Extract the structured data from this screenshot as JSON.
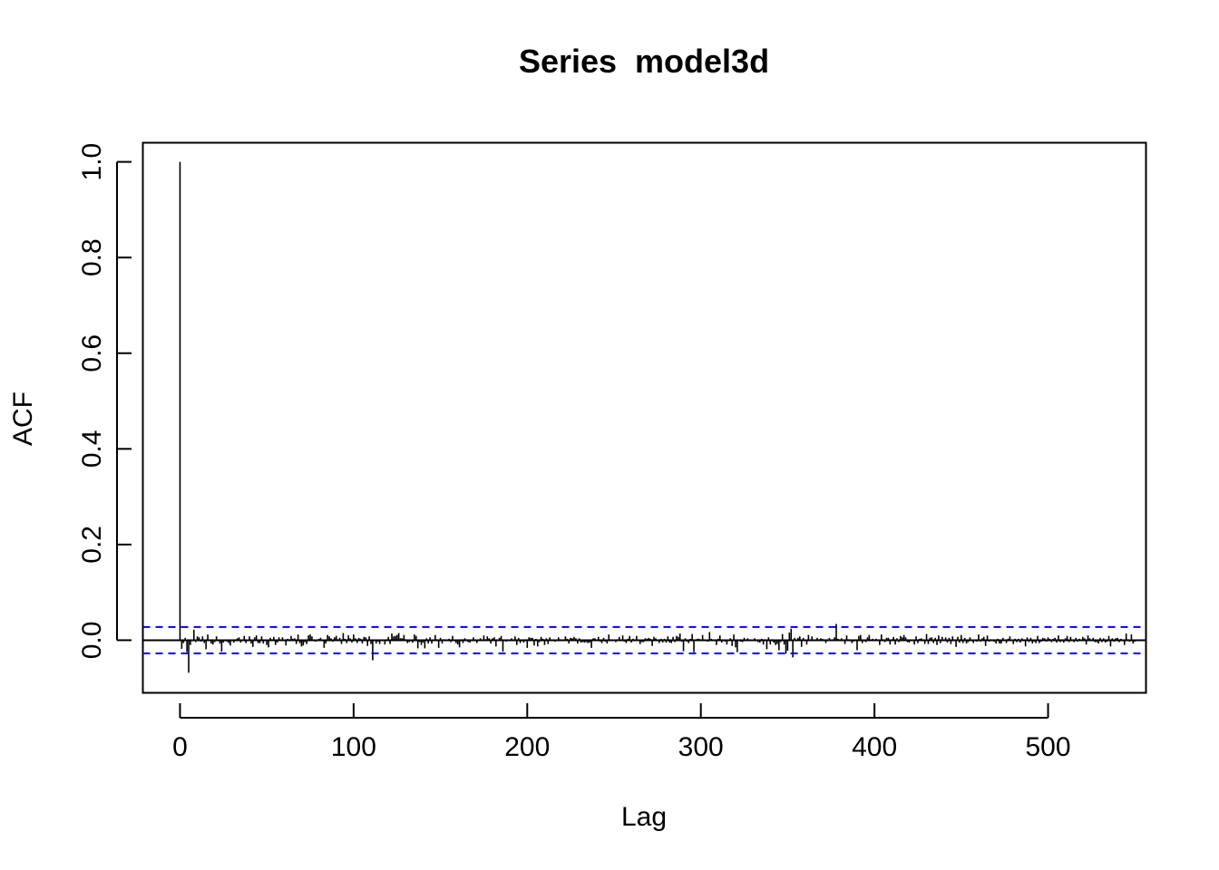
{
  "chart_data": {
    "type": "bar",
    "title": "Series  model3d",
    "xlabel": "Lag",
    "ylabel": "ACF",
    "xlim": [
      -21.4,
      556.4
    ],
    "ylim": [
      -0.11,
      1.04
    ],
    "x_ticks": [
      0,
      100,
      200,
      300,
      400,
      500
    ],
    "x_tick_labels": [
      "0",
      "100",
      "200",
      "300",
      "400",
      "500"
    ],
    "y_ticks": [
      0.0,
      0.2,
      0.4,
      0.6,
      0.8,
      1.0
    ],
    "y_tick_labels": [
      "0.0",
      "0.2",
      "0.4",
      "0.6",
      "0.8",
      "1.0"
    ],
    "confidence_band": 0.0275,
    "band_color": "#0000ff",
    "bar_color": "#000000",
    "max_lag": 535,
    "series": [
      {
        "x_start": 0,
        "x_step": 1,
        "values": [
          1.0,
          -0.018,
          -0.006,
          0.005,
          -0.025,
          -0.068,
          -0.01,
          -0.002,
          0.022,
          -0.004,
          0.008,
          0.006,
          -0.003,
          0.008,
          -0.006,
          -0.019,
          0.012,
          -0.001,
          -0.007,
          -0.009,
          -0.004,
          0.008,
          -0.002,
          -0.007,
          -0.024,
          -0.005,
          -0.002,
          -0.003,
          -0.006,
          -0.011,
          0.001,
          -0.005,
          0.002,
          0.004,
          0.006,
          -0.005,
          -0.002,
          0.009,
          -0.006,
          -0.001,
          0.008,
          -0.007,
          -0.014,
          0.006,
          0.01,
          -0.006,
          -0.006,
          0.008,
          -0.007,
          0.001,
          -0.01,
          -0.015,
          0.005,
          0.002,
          0.007,
          -0.01,
          -0.005,
          0.006,
          -0.001,
          0.006,
          -0.002,
          -0.011,
          0.003,
          0.002,
          0.009,
          0.003,
          0.004,
          -0.008,
          0.012,
          -0.006,
          -0.013,
          -0.011,
          -0.004,
          -0.008,
          0.01,
          0.012,
          0.008,
          0.001,
          -0.003,
          0.001,
          0.003,
          0.005,
          -0.002,
          -0.016,
          -0.007,
          0.011,
          0.008,
          0.004,
          -0.003,
          0.006,
          0.009,
          0.002,
          0.005,
          -0.008,
          0.015,
          0.003,
          -0.006,
          0.01,
          0.004,
          -0.005,
          0.012,
          0.004,
          -0.006,
          0.005,
          0.003,
          -0.007,
          0.007,
          0.006,
          -0.012,
          0.008,
          -0.008,
          -0.042,
          0.001,
          -0.007,
          -0.003,
          -0.008,
          -0.001,
          -0.001,
          -0.009,
          0.002,
          0.007,
          -0.008,
          0.014,
          0.008,
          0.009,
          0.011,
          0.015,
          0.004,
          0.004,
          0.011,
          0.002,
          -0.006,
          -0.004,
          0.001,
          -0.005,
          0.012,
          0.009,
          -0.017,
          -0.004,
          -0.01,
          -0.005,
          -0.017,
          0.004,
          -0.007,
          0.006,
          -0.007,
          0.001,
          0.011,
          0.002,
          -0.016,
          0.005,
          -0.007,
          0.002,
          -0.001,
          0.001,
          0.003,
          -0.004,
          0.009,
          0.001,
          -0.006,
          -0.009,
          -0.015,
          0.002,
          -0.006,
          0.004,
          0.002,
          -0.004,
          -0.005,
          -0.001,
          0.006,
          -0.002,
          -0.006,
          0.001,
          0.004,
          0.001,
          0.01,
          0.002,
          0.008,
          0.004,
          -0.007,
          0.004,
          0.006,
          -0.013,
          0.001,
          0.005,
          0.009,
          -0.024,
          -0.001,
          -0.003,
          0.001,
          -0.001,
          0.004,
          0.001,
          0.008,
          -0.01,
          0.005,
          -0.006,
          -0.002,
          -0.005,
          0.002,
          -0.016,
          0.006,
          0.005,
          0.005,
          -0.011,
          0.003,
          -0.013,
          -0.004,
          0.007,
          0.003,
          -0.01,
          0.004,
          -0.008,
          0.006,
          0.001,
          -0.001,
          -0.003,
          -0.001,
          0.006,
          0.002,
          0.001,
          -0.002,
          0.008,
          0.003,
          -0.007,
          0.005,
          0.004,
          0.007,
          0.004,
          -0.007,
          0.004,
          -0.005,
          -0.004,
          -0.005,
          -0.004,
          -0.006,
          -0.005,
          -0.016,
          0.004,
          0.004,
          -0.001,
          0.007,
          -0.003,
          -0.006,
          0.005,
          -0.003,
          -0.007,
          0.012,
          0.002,
          0.001,
          -0.001,
          -0.004,
          0.002,
          0.007,
          -0.002,
          0.01,
          -0.003,
          -0.006,
          0.003,
          0.009,
          -0.005,
          0.003,
          -0.002,
          0.009,
          -0.001,
          -0.008,
          -0.004,
          -0.004,
          0.004,
          0.003,
          0.005,
          0.003,
          -0.012,
          0.007,
          0.004,
          -0.001,
          -0.006,
          0.003,
          -0.005,
          0.003,
          -0.005,
          0.008,
          -0.005,
          -0.006,
          0.007,
          -0.004,
          0.009,
          0.007,
          0.014,
          -0.003,
          -0.023,
          0.004,
          -0.003,
          -0.006,
          0.003,
          0.013,
          -0.025,
          -0.001,
          0.003,
          0.003,
          -0.001,
          0.011,
          -0.001,
          -0.002,
          -0.003,
          0.017,
          0.003,
          0.001,
          -0.001,
          -0.01,
          0.003,
          0.01,
          -0.005,
          -0.001,
          -0.003,
          -0.009,
          -0.002,
          0.004,
          -0.012,
          0.012,
          -0.015,
          -0.025,
          -0.001,
          -0.003,
          -0.004,
          0.005,
          -0.001,
          0.004,
          -0.001,
          -0.002,
          -0.002,
          0.004,
          0.001,
          -0.004,
          -0.005,
          0.003,
          -0.009,
          0.002,
          -0.019,
          0.006,
          -0.009,
          0.002,
          -0.005,
          -0.01,
          -0.008,
          -0.021,
          -0.004,
          0.013,
          -0.009,
          -0.028,
          -0.022,
          0.016,
          0.024,
          -0.036,
          0.005,
          -0.002,
          0.005,
          0.008,
          -0.014,
          0.005,
          -0.001,
          -0.009,
          0.011,
          0.001,
          0.008,
          -0.001,
          0.001,
          0.005,
          0.002,
          0.004,
          0.003,
          -0.002,
          -0.006,
          0.002,
          0.005,
          0.001,
          0.002,
          0.006,
          0.034,
          0.003,
          0.001,
          0.004,
          0.001,
          -0.008,
          0.01,
          0.002,
          -0.001,
          -0.006,
          -0.003,
          0.001,
          -0.021,
          0.009,
          0.011,
          -0.006,
          0.001,
          -0.004,
          0.006,
          0.011,
          -0.002,
          0.003,
          0.001,
          0.003,
          0.001,
          -0.01,
          0.012,
          0.002,
          -0.004,
          0.005,
          0.005,
          -0.009,
          0.002,
          0.007,
          -0.009,
          0.004,
          -0.004,
          0.009,
          0.006,
          0.011,
          0.006,
          -0.004,
          -0.005,
          -0.002,
          0.001,
          -0.009,
          0.008,
          -0.006,
          0.003,
          0.004,
          0.001,
          -0.008,
          0.013,
          -0.008,
          0.005,
          0.006,
          -0.006,
          0.005,
          -0.01,
          0.01,
          -0.006,
          0.007,
          0.001,
          0.006,
          -0.005,
          0.005,
          -0.008,
          0.008,
          0.001,
          -0.014,
          0.007,
          -0.005,
          0.011,
          -0.006,
          0.005,
          -0.007,
          -0.004,
          0.006,
          -0.001,
          -0.006,
          0.001,
          -0.003,
          0.012,
          -0.003,
          0.004,
          0.007,
          -0.012,
          0.01,
          -0.003,
          0.002,
          0.001,
          -0.003,
          -0.007,
          0.003,
          -0.007,
          -0.007,
          0.005,
          0.001,
          -0.006,
          0.003,
          0.008,
          -0.001,
          -0.008,
          0.003,
          -0.004,
          0.003,
          -0.005,
          0.004,
          -0.002,
          -0.013,
          0.006,
          -0.004,
          0.005,
          -0.007,
          -0.003,
          -0.006,
          0.009,
          -0.006,
          -0.003,
          0.005,
          0.004,
          -0.003,
          0.006,
          0.003,
          -0.004,
          0.003,
          0.005,
          -0.005,
          0.01,
          -0.004,
          0.002,
          -0.005,
          0.004,
          0.009,
          -0.004,
          0.007,
          -0.002,
          -0.004,
          0.005,
          -0.003,
          0.003,
          -0.002,
          0.007,
          0.004,
          -0.009,
          0.01,
          0.004,
          -0.001,
          0.005,
          -0.004,
          -0.004,
          -0.007,
          0.005,
          -0.004,
          0.004,
          -0.005,
          -0.003,
          0.009,
          -0.013,
          0.004,
          -0.003,
          0.004,
          0.005,
          -0.004,
          0.003,
          -0.002,
          -0.01,
          0.014,
          0.002,
          -0.003,
          0.012,
          -0.007,
          -0.003
        ]
      }
    ]
  }
}
